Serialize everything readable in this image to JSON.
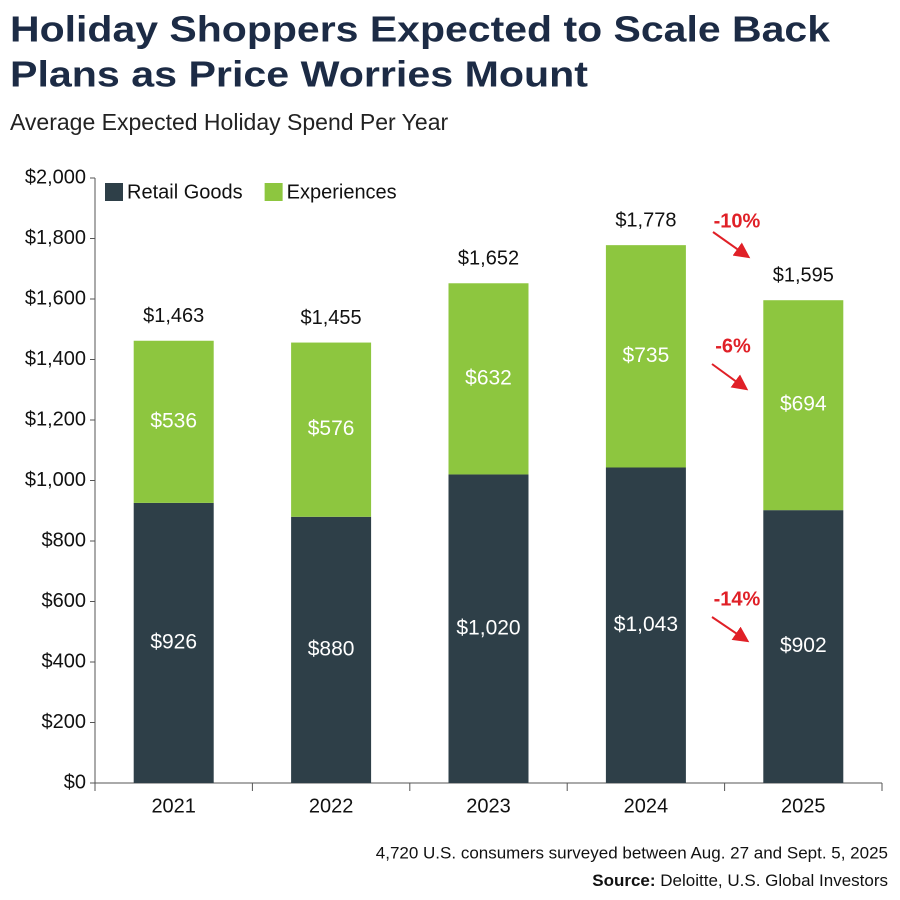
{
  "chart_data": {
    "type": "stacked_bar",
    "title": [
      "Holiday Shoppers Expected to Scale Back",
      "Plans as Price Worries Mount"
    ],
    "subtitle": "Average Expected Holiday Spend Per Year",
    "categories": [
      "2021",
      "2022",
      "2023",
      "2024",
      "2025"
    ],
    "series": [
      {
        "name": "Retail Goods",
        "color": "#2e3f48",
        "values": [
          926,
          880,
          1020,
          1043,
          902
        ],
        "value_labels": [
          "$926",
          "$880",
          "$1,020",
          "$1,043",
          "$902"
        ]
      },
      {
        "name": "Experiences",
        "color": "#8dc63f",
        "values": [
          536,
          576,
          632,
          735,
          694
        ],
        "value_labels": [
          "$536",
          "$576",
          "$632",
          "$735",
          "$694"
        ]
      }
    ],
    "totals": [
      1463,
      1455,
      1652,
      1778,
      1595
    ],
    "total_labels": [
      "$1,463",
      "$1,455",
      "$1,652",
      "$1,778",
      "$1,595"
    ],
    "annotations": [
      "-10%",
      "-6%",
      "-14%"
    ],
    "ylim": [
      0,
      2000
    ],
    "yticks": [
      {
        "value": 0,
        "label": "$0"
      },
      {
        "value": 200,
        "label": "$200"
      },
      {
        "value": 400,
        "label": "$400"
      },
      {
        "value": 600,
        "label": "$600"
      },
      {
        "value": 800,
        "label": "$800"
      },
      {
        "value": 1000,
        "label": "$1,000"
      },
      {
        "value": 1200,
        "label": "$1,200"
      },
      {
        "value": 1400,
        "label": "$1,400"
      },
      {
        "value": 1600,
        "label": "$1,600"
      },
      {
        "value": 1800,
        "label": "$1,800"
      },
      {
        "value": 2000,
        "label": "$2,000"
      }
    ],
    "legend": "top-left"
  },
  "footer": {
    "note": "4,720 U.S. consumers surveyed between Aug. 27 and Sept. 5, 2025",
    "source_label": "Source:",
    "source": "Deloitte, U.S. Global Investors"
  }
}
